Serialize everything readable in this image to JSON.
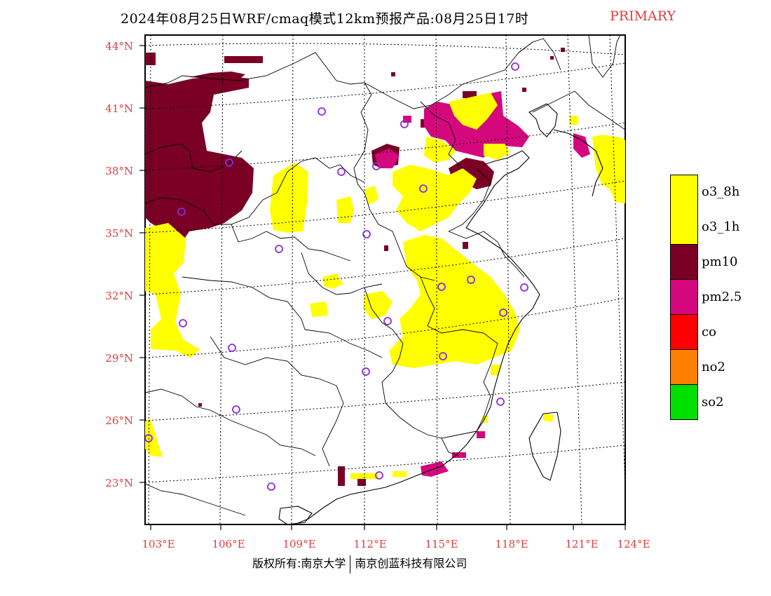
{
  "title": {
    "main": "2024年08月25日WRF/cmaq模式12km预报产品:08月25日17时",
    "tag": "PRIMARY"
  },
  "axes": {
    "lat_labels": [
      "44°N",
      "41°N",
      "38°N",
      "35°N",
      "32°N",
      "29°N",
      "26°N",
      "23°N"
    ],
    "lon_labels": [
      "103°E",
      "106°E",
      "109°E",
      "112°E",
      "115°E",
      "118°E",
      "121°E",
      "124°E"
    ]
  },
  "legend": [
    {
      "label": "o3_8h",
      "color": "#ffff00"
    },
    {
      "label": "o3_1h",
      "color": "#ffff00"
    },
    {
      "label": "pm10",
      "color": "#7a0026"
    },
    {
      "label": "pm2.5",
      "color": "#d4087c"
    },
    {
      "label": "co",
      "color": "#ff0000"
    },
    {
      "label": "no2",
      "color": "#ff8000"
    },
    {
      "label": "so2",
      "color": "#00e000"
    }
  ],
  "copyright": {
    "left": "版权所有:南京大学",
    "right": "南京创蓝科技有限公司"
  },
  "colors": {
    "pm10": "#7a0026",
    "pm25": "#d4087c",
    "o3": "#ffff00",
    "station_circle": "#8a2be2",
    "axis_label": "#e03c3c"
  }
}
